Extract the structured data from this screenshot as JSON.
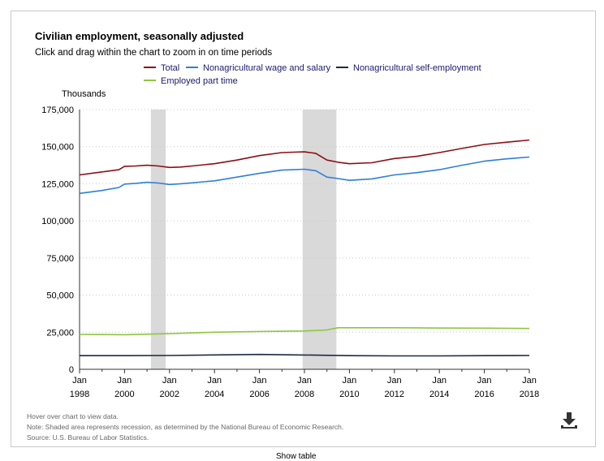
{
  "chart_data": {
    "type": "line",
    "title": "Civilian employment, seasonally adjusted",
    "subtitle": "Click and drag within the chart to zoom in on time periods",
    "ylabel": "Thousands",
    "xlabel": "",
    "ylim": [
      0,
      175000
    ],
    "xlim": [
      1998.0,
      2018.0
    ],
    "y_ticks": [
      "175,000",
      "150,000",
      "125,000",
      "100,000",
      "75,000",
      "50,000",
      "25,000",
      "0"
    ],
    "x_ticks": [
      {
        "month": "Jan",
        "year": "1998"
      },
      {
        "month": "Jan",
        "year": "2000"
      },
      {
        "month": "Jan",
        "year": "2002"
      },
      {
        "month": "Jan",
        "year": "2004"
      },
      {
        "month": "Jan",
        "year": "2006"
      },
      {
        "month": "Jan",
        "year": "2008"
      },
      {
        "month": "Jan",
        "year": "2010"
      },
      {
        "month": "Jan",
        "year": "2012"
      },
      {
        "month": "Jan",
        "year": "2014"
      },
      {
        "month": "Jan",
        "year": "2016"
      },
      {
        "month": "Jan",
        "year": "2018"
      }
    ],
    "grid": true,
    "legend_position": "top",
    "recessions": [
      [
        2001.17,
        2001.83
      ],
      [
        2007.92,
        2009.42
      ]
    ],
    "series": [
      {
        "name": "Total",
        "color": "#8b0f14",
        "x": [
          1998.0,
          1999.0,
          1999.75,
          2000.0,
          2000.5,
          2001.0,
          2001.5,
          2002.0,
          2002.5,
          2003.0,
          2004.0,
          2005.0,
          2006.0,
          2007.0,
          2007.5,
          2008.0,
          2008.5,
          2009.0,
          2009.5,
          2010.0,
          2011.0,
          2012.0,
          2013.0,
          2014.0,
          2015.0,
          2016.0,
          2017.0,
          2018.0
        ],
        "y": [
          131000,
          133000,
          134500,
          136800,
          137000,
          137500,
          137000,
          136000,
          136300,
          137000,
          138500,
          141000,
          144000,
          146000,
          146300,
          146500,
          145500,
          141000,
          139500,
          138500,
          139200,
          142000,
          143500,
          146000,
          148800,
          151500,
          153000,
          154500
        ]
      },
      {
        "name": "Nonagricultural wage and salary",
        "color": "#2e7fd8",
        "x": [
          1998.0,
          1999.0,
          1999.75,
          2000.0,
          2000.5,
          2001.0,
          2001.5,
          2002.0,
          2002.5,
          2003.0,
          2004.0,
          2005.0,
          2006.0,
          2007.0,
          2007.5,
          2008.0,
          2008.5,
          2009.0,
          2009.5,
          2010.0,
          2011.0,
          2012.0,
          2013.0,
          2014.0,
          2015.0,
          2016.0,
          2017.0,
          2018.0
        ],
        "y": [
          118500,
          120500,
          122500,
          124800,
          125300,
          126000,
          125500,
          124500,
          125000,
          125600,
          127000,
          129500,
          132000,
          134200,
          134500,
          134800,
          133800,
          129500,
          128500,
          127300,
          128300,
          131000,
          132500,
          134500,
          137500,
          140200,
          141800,
          143000
        ]
      },
      {
        "name": "Nonagricultural self-employment",
        "color": "#1a2b45",
        "x": [
          1998.0,
          2000.0,
          2002.0,
          2004.0,
          2006.0,
          2008.0,
          2010.0,
          2012.0,
          2014.0,
          2016.0,
          2018.0
        ],
        "y": [
          9200,
          9200,
          9300,
          9700,
          10000,
          9600,
          9200,
          9000,
          9000,
          9200,
          9300
        ]
      },
      {
        "name": "Employed part time",
        "color": "#8dc63f",
        "x": [
          1998.0,
          2000.0,
          2002.0,
          2004.0,
          2006.0,
          2008.0,
          2009.0,
          2009.5,
          2010.0,
          2012.0,
          2014.0,
          2016.0,
          2018.0
        ],
        "y": [
          23500,
          23300,
          24000,
          25000,
          25500,
          25800,
          26500,
          28000,
          28000,
          28000,
          27800,
          27700,
          27500
        ]
      }
    ]
  },
  "notes": {
    "hover": "Hover over chart to view data.",
    "shading": "Note: Shaded area represents recession, as determined by the National Bureau of Economic Research.",
    "source": "Source: U.S. Bureau of Labor Statistics."
  },
  "bottom_link": "Show table",
  "icons": {
    "download": "download-icon"
  }
}
